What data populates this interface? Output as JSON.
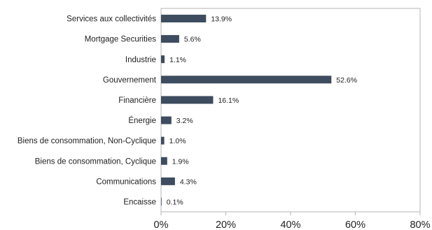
{
  "chart_data": {
    "type": "bar",
    "orientation": "horizontal",
    "categories": [
      "Services aux collectivités",
      "Mortgage Securities",
      "Industrie",
      "Gouvernement",
      "Financière",
      "Énergie",
      "Biens de consommation, Non-Cyclique",
      "Biens de consommation, Cyclique",
      "Communications",
      "Encaisse"
    ],
    "values": [
      13.9,
      5.6,
      1.1,
      52.6,
      16.1,
      3.2,
      1.0,
      1.9,
      4.3,
      0.1
    ],
    "value_labels": [
      "13.9%",
      "5.6%",
      "1.1%",
      "52.6%",
      "16.1%",
      "3.2%",
      "1.0%",
      "1.9%",
      "4.3%",
      "0.1%"
    ],
    "xlim": [
      0,
      80
    ],
    "xticks": [
      0,
      20,
      40,
      60,
      80
    ],
    "xtick_labels": [
      "0%",
      "20%",
      "40%",
      "60%",
      "80%"
    ],
    "grid": false,
    "legend": "none",
    "bar_color": "#3d4c5e",
    "frame_color": "#b5b5b5"
  }
}
